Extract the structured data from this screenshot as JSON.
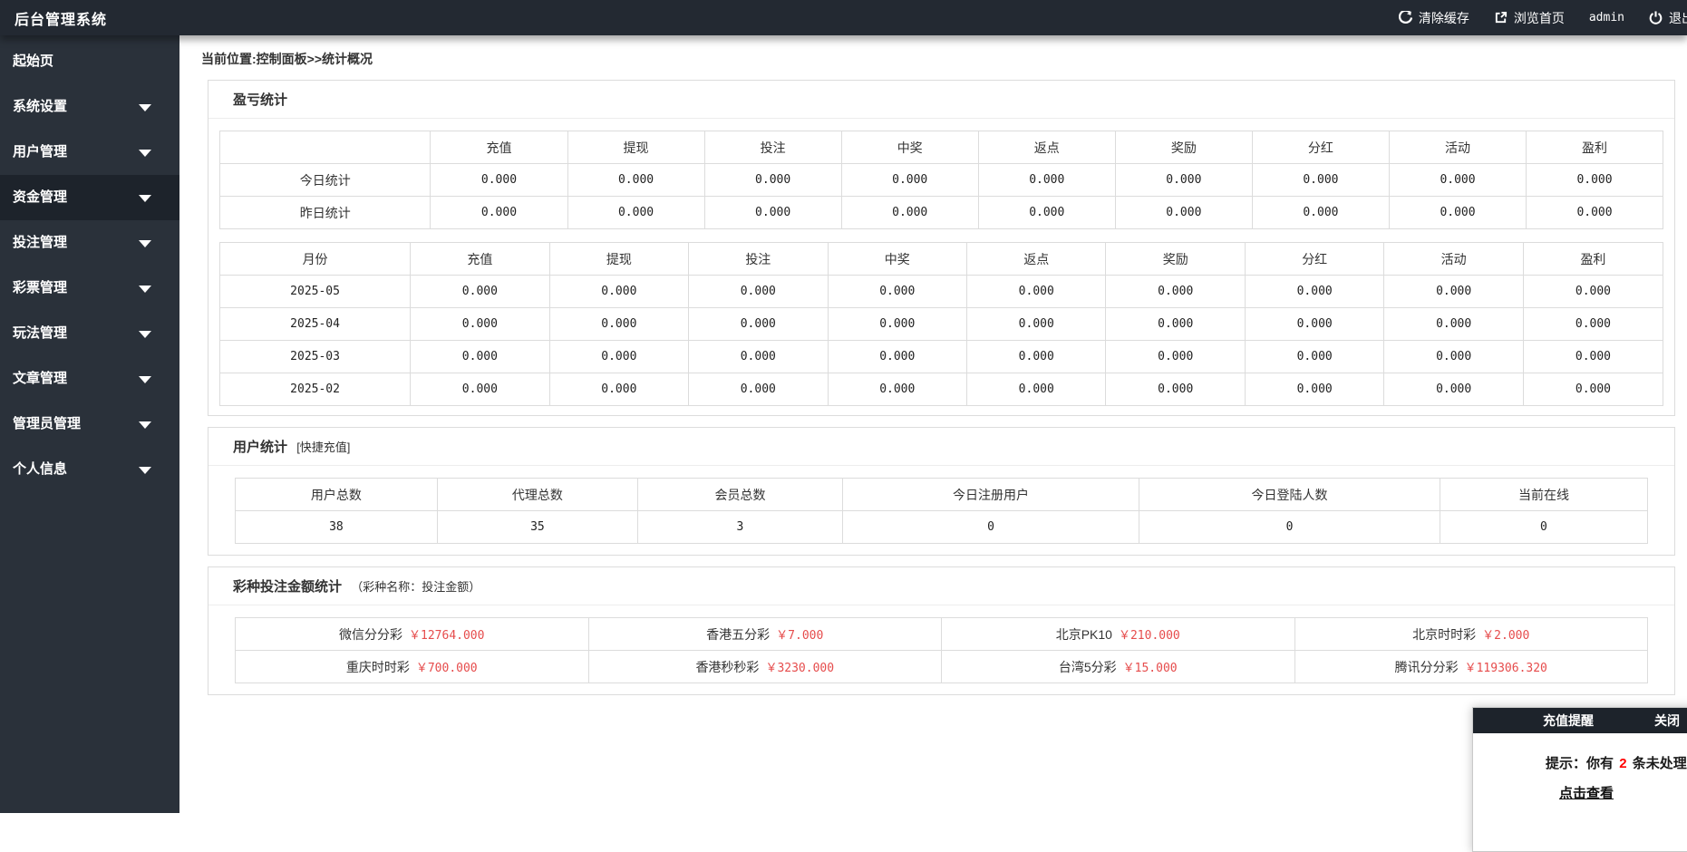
{
  "topbar": {
    "title": "后台管理系统",
    "clear_cache": "清除缓存",
    "browse_home": "浏览首页",
    "username": "admin",
    "logout": "退出"
  },
  "sidebar": {
    "items": [
      {
        "key": "home",
        "label": "起始页",
        "has_arrow": false,
        "active": false
      },
      {
        "key": "system",
        "label": "系统设置",
        "has_arrow": true,
        "active": false
      },
      {
        "key": "users",
        "label": "用户管理",
        "has_arrow": true,
        "active": false
      },
      {
        "key": "funds",
        "label": "资金管理",
        "has_arrow": true,
        "active": true
      },
      {
        "key": "betting",
        "label": "投注管理",
        "has_arrow": true,
        "active": false
      },
      {
        "key": "lottery",
        "label": "彩票管理",
        "has_arrow": true,
        "active": false
      },
      {
        "key": "play",
        "label": "玩法管理",
        "has_arrow": true,
        "active": false
      },
      {
        "key": "articles",
        "label": "文章管理",
        "has_arrow": true,
        "active": false
      },
      {
        "key": "admins",
        "label": "管理员管理",
        "has_arrow": true,
        "active": false
      },
      {
        "key": "profile",
        "label": "个人信息",
        "has_arrow": true,
        "active": false
      }
    ]
  },
  "breadcrumb": "当前位置:控制面板>>统计概况",
  "profit_panel": {
    "title": "盈亏统计",
    "daily_table": {
      "headers": [
        "",
        "充值",
        "提现",
        "投注",
        "中奖",
        "返点",
        "奖励",
        "分红",
        "活动",
        "盈利"
      ],
      "rows": [
        [
          "今日统计",
          "0.000",
          "0.000",
          "0.000",
          "0.000",
          "0.000",
          "0.000",
          "0.000",
          "0.000",
          "0.000"
        ],
        [
          "昨日统计",
          "0.000",
          "0.000",
          "0.000",
          "0.000",
          "0.000",
          "0.000",
          "0.000",
          "0.000",
          "0.000"
        ]
      ]
    },
    "monthly_table": {
      "headers": [
        "月份",
        "充值",
        "提现",
        "投注",
        "中奖",
        "返点",
        "奖励",
        "分红",
        "活动",
        "盈利"
      ],
      "rows": [
        [
          "2025-05",
          "0.000",
          "0.000",
          "0.000",
          "0.000",
          "0.000",
          "0.000",
          "0.000",
          "0.000",
          "0.000"
        ],
        [
          "2025-04",
          "0.000",
          "0.000",
          "0.000",
          "0.000",
          "0.000",
          "0.000",
          "0.000",
          "0.000",
          "0.000"
        ],
        [
          "2025-03",
          "0.000",
          "0.000",
          "0.000",
          "0.000",
          "0.000",
          "0.000",
          "0.000",
          "0.000",
          "0.000"
        ],
        [
          "2025-02",
          "0.000",
          "0.000",
          "0.000",
          "0.000",
          "0.000",
          "0.000",
          "0.000",
          "0.000",
          "0.000"
        ]
      ]
    }
  },
  "user_panel": {
    "title": "用户统计",
    "subtitle": "[快捷充值]",
    "table": {
      "headers": [
        "用户总数",
        "代理总数",
        "会员总数",
        "今日注册用户",
        "今日登陆人数",
        "当前在线"
      ],
      "rows": [
        [
          "38",
          "35",
          "3",
          "0",
          "0",
          "0"
        ]
      ]
    }
  },
  "lottery_panel": {
    "title": "彩种投注金额统计",
    "subtitle": "（彩种名称：投注金额）",
    "currency": "￥",
    "rows": [
      [
        {
          "name": "微信分分彩",
          "amount": "12764.000"
        },
        {
          "name": "香港五分彩",
          "amount": "7.000"
        },
        {
          "name": "北京PK10",
          "amount": "210.000"
        },
        {
          "name": "北京时时彩",
          "amount": "2.000"
        }
      ],
      [
        {
          "name": "重庆时时彩",
          "amount": "700.000"
        },
        {
          "name": "香港秒秒彩",
          "amount": "3230.000"
        },
        {
          "name": "台湾5分彩",
          "amount": "15.000"
        },
        {
          "name": "腾讯分分彩",
          "amount": "119306.320"
        }
      ]
    ]
  },
  "recharge_popup": {
    "title": "充值提醒",
    "close_label": "关闭",
    "hint_prefix": "提示：你有",
    "count": "2",
    "hint_suffix": "条未处理的充值",
    "link_label": "点击查看"
  },
  "colors": {
    "topbar_bg": "#232932",
    "sidebar_bg": "#2a313a",
    "active_item_bg": "#1d232b",
    "amount_red": "#e64c4c",
    "count_red": "#ff0000"
  }
}
